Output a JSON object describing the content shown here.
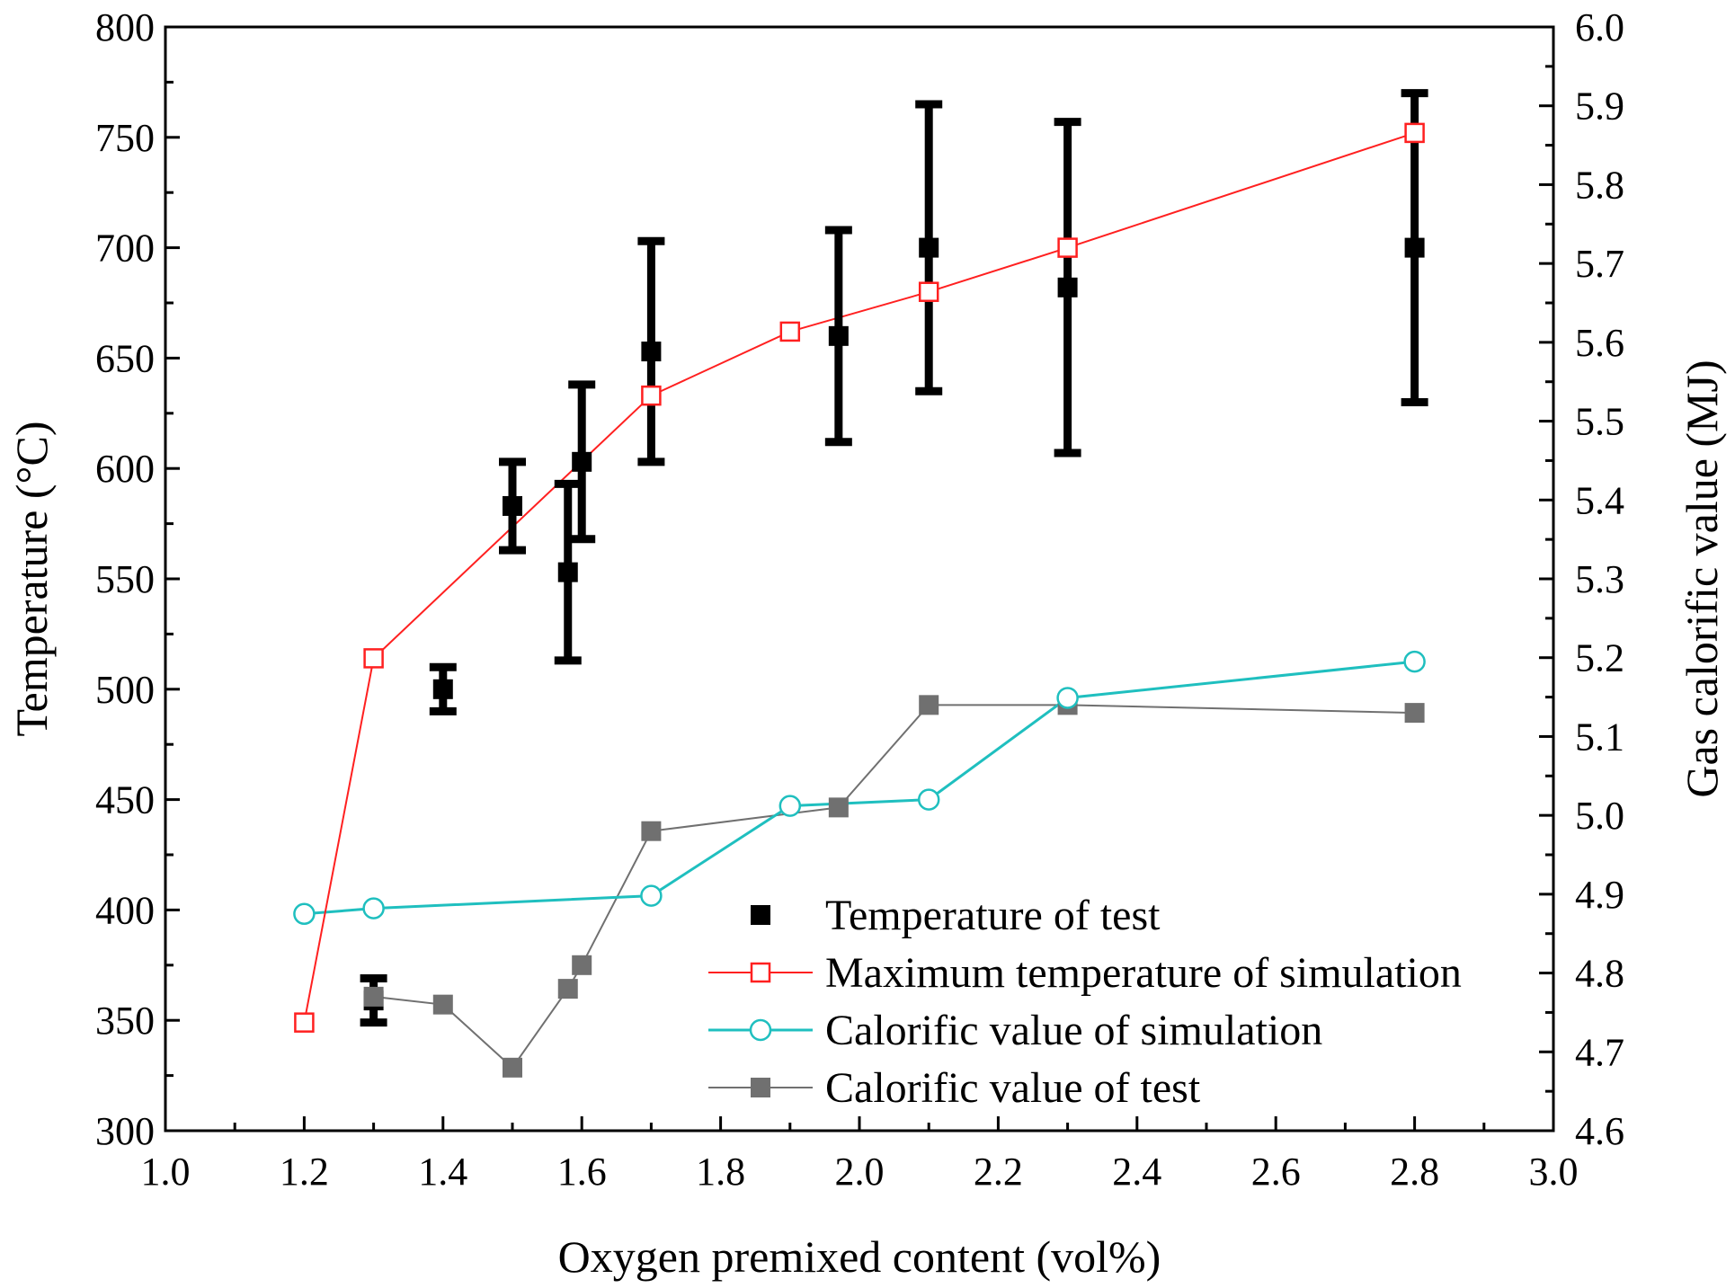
{
  "chart_data": {
    "type": "line",
    "xlabel": "Oxygen premixed content (vol%)",
    "ylabel_left": "Temperature (°C)",
    "ylabel_right": "Gas calorific value (MJ)",
    "xlim": [
      1.0,
      3.0
    ],
    "ylim_left": [
      300,
      800
    ],
    "ylim_right": [
      4.6,
      6.0
    ],
    "x_ticks": [
      "1.0",
      "1.2",
      "1.4",
      "1.6",
      "1.8",
      "2.0",
      "2.2",
      "2.4",
      "2.6",
      "2.8",
      "3.0"
    ],
    "y_left_ticks": [
      "300",
      "350",
      "400",
      "450",
      "500",
      "550",
      "600",
      "650",
      "700",
      "750",
      "800"
    ],
    "y_right_ticks": [
      "4.6",
      "4.7",
      "4.8",
      "4.9",
      "5.0",
      "5.1",
      "5.2",
      "5.3",
      "5.4",
      "5.5",
      "5.6",
      "5.7",
      "5.8",
      "5.9",
      "6.0"
    ],
    "legend_position": "bottom-right",
    "series": [
      {
        "name": "Temperature of test",
        "axis": "left",
        "style": "square-marker-errorbar",
        "color": "#000000",
        "points": [
          {
            "x": 1.3,
            "y": 359,
            "low": 349,
            "high": 369
          },
          {
            "x": 1.4,
            "y": 500,
            "low": 490,
            "high": 510
          },
          {
            "x": 1.5,
            "y": 583,
            "low": 563,
            "high": 603
          },
          {
            "x": 1.58,
            "y": 553,
            "low": 513,
            "high": 593
          },
          {
            "x": 1.6,
            "y": 603,
            "low": 568,
            "high": 638
          },
          {
            "x": 1.7,
            "y": 653,
            "low": 603,
            "high": 703
          },
          {
            "x": 1.97,
            "y": 660,
            "low": 612,
            "high": 708
          },
          {
            "x": 2.1,
            "y": 700,
            "low": 635,
            "high": 765
          },
          {
            "x": 2.3,
            "y": 682,
            "low": 607,
            "high": 757
          },
          {
            "x": 2.8,
            "y": 700,
            "low": 630,
            "high": 770
          }
        ]
      },
      {
        "name": "Maximum temperature of simulation",
        "axis": "left",
        "style": "open-square-line",
        "color": "#ff2020",
        "points": [
          {
            "x": 1.2,
            "y": 349
          },
          {
            "x": 1.3,
            "y": 514
          },
          {
            "x": 1.7,
            "y": 633
          },
          {
            "x": 1.9,
            "y": 662
          },
          {
            "x": 2.1,
            "y": 680
          },
          {
            "x": 2.3,
            "y": 700
          },
          {
            "x": 2.8,
            "y": 752
          }
        ]
      },
      {
        "name": "Calorific value of simulation",
        "axis": "right",
        "style": "open-circle-line",
        "color": "#1fbfbf",
        "points": [
          {
            "x": 1.2,
            "y": 4.875
          },
          {
            "x": 1.3,
            "y": 4.882
          },
          {
            "x": 1.7,
            "y": 4.898
          },
          {
            "x": 1.9,
            "y": 5.012
          },
          {
            "x": 2.1,
            "y": 5.02
          },
          {
            "x": 2.3,
            "y": 5.149
          },
          {
            "x": 2.8,
            "y": 5.195
          }
        ]
      },
      {
        "name": "Calorific value of test",
        "axis": "right",
        "style": "filled-square-line",
        "color": "#707070",
        "points": [
          {
            "x": 1.3,
            "y": 4.77
          },
          {
            "x": 1.4,
            "y": 4.76
          },
          {
            "x": 1.5,
            "y": 4.68
          },
          {
            "x": 1.58,
            "y": 4.78
          },
          {
            "x": 1.6,
            "y": 4.81
          },
          {
            "x": 1.7,
            "y": 4.98
          },
          {
            "x": 1.97,
            "y": 5.01
          },
          {
            "x": 2.1,
            "y": 5.14
          },
          {
            "x": 2.3,
            "y": 5.14
          },
          {
            "x": 2.8,
            "y": 5.13
          }
        ]
      }
    ]
  }
}
